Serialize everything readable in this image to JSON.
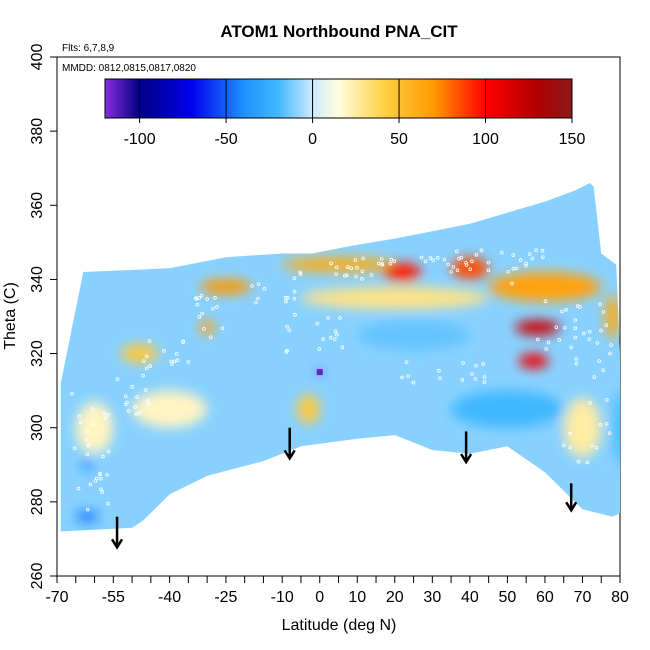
{
  "chart_data": {
    "type": "heatmap",
    "title": "ATOM1 Northbound PNA_CIT",
    "note_flights": "Flts: 6,7,8,9",
    "note_dates": "MMDD: 0812,0815,0817,0820",
    "xlabel": "Latitude (deg N)",
    "ylabel": "Theta (C)",
    "xlim": [
      -70,
      80
    ],
    "ylim": [
      260,
      400
    ],
    "x_ticks": [
      -70,
      -55,
      -40,
      -25,
      -10,
      0,
      10,
      20,
      30,
      40,
      50,
      60,
      70,
      80
    ],
    "x_tick_labels": [
      "-70",
      "-55",
      "-40",
      "-25",
      "-10",
      "0",
      "10",
      "20",
      "30",
      "40",
      "50",
      "60",
      "70",
      "80"
    ],
    "x_minor_ticks": [
      -65,
      -60,
      -50,
      -45,
      -35,
      -30,
      -20,
      -15,
      -5,
      5,
      15,
      25,
      35,
      45,
      55,
      65,
      75
    ],
    "y_ticks": [
      260,
      280,
      300,
      320,
      340,
      360,
      380,
      400
    ],
    "y_tick_labels": [
      "260",
      "280",
      "300",
      "320",
      "340",
      "360",
      "380",
      "400"
    ],
    "colorbar": {
      "range": [
        -120,
        150
      ],
      "ticks": [
        -100,
        -50,
        0,
        50,
        100,
        150
      ],
      "tick_labels": [
        "-100",
        "-50",
        "0",
        "50",
        "100",
        "150"
      ],
      "stops": [
        {
          "v": -120,
          "color": "#8a2be2"
        },
        {
          "v": -100,
          "color": "#000080"
        },
        {
          "v": -70,
          "color": "#0000ee"
        },
        {
          "v": -40,
          "color": "#1e90ff"
        },
        {
          "v": -20,
          "color": "#40b8ff"
        },
        {
          "v": 0,
          "color": "#cfe9ff"
        },
        {
          "v": 15,
          "color": "#fffde0"
        },
        {
          "v": 40,
          "color": "#ffd24a"
        },
        {
          "v": 70,
          "color": "#ff9a00"
        },
        {
          "v": 100,
          "color": "#ff0000"
        },
        {
          "v": 130,
          "color": "#b00000"
        },
        {
          "v": 150,
          "color": "#8b1a1a"
        }
      ]
    },
    "field": {
      "boundary_top": [
        [
          -69,
          312
        ],
        [
          -66,
          327
        ],
        [
          -63,
          342
        ],
        [
          -40,
          343
        ],
        [
          -25,
          346
        ],
        [
          -10,
          347
        ],
        [
          -2,
          347
        ],
        [
          8,
          349
        ],
        [
          20,
          351
        ],
        [
          30,
          353
        ],
        [
          40,
          355
        ],
        [
          50,
          358
        ],
        [
          60,
          361
        ],
        [
          68,
          364
        ],
        [
          72,
          366
        ],
        [
          73,
          365
        ],
        [
          75,
          347
        ],
        [
          79,
          344
        ],
        [
          80,
          320
        ],
        [
          80,
          283
        ]
      ],
      "boundary_bottom": [
        [
          -69,
          272
        ],
        [
          -50,
          273
        ],
        [
          -47,
          275
        ],
        [
          -40,
          282
        ],
        [
          -30,
          287
        ],
        [
          -15,
          291
        ],
        [
          -5,
          295
        ],
        [
          10,
          297
        ],
        [
          20,
          298
        ],
        [
          30,
          294
        ],
        [
          40,
          293
        ],
        [
          50,
          295
        ],
        [
          60,
          288
        ],
        [
          70,
          278
        ],
        [
          78,
          276
        ],
        [
          80,
          277
        ]
      ],
      "background_value": -10,
      "blobs": [
        {
          "lat": 5,
          "theta": 344,
          "value": 60,
          "width": 30,
          "height": 4
        },
        {
          "lat": 22,
          "theta": 342,
          "value": 95,
          "width": 10,
          "height": 5
        },
        {
          "lat": 40,
          "theta": 343,
          "value": 85,
          "width": 10,
          "height": 6
        },
        {
          "lat": 60,
          "theta": 338,
          "value": 65,
          "width": 30,
          "height": 8
        },
        {
          "lat": 58,
          "theta": 327,
          "value": 120,
          "width": 12,
          "height": 4
        },
        {
          "lat": 57,
          "theta": 318,
          "value": 105,
          "width": 8,
          "height": 4
        },
        {
          "lat": -25,
          "theta": 338,
          "value": 70,
          "width": 14,
          "height": 4
        },
        {
          "lat": -30,
          "theta": 327,
          "value": 65,
          "width": 4,
          "height": 4
        },
        {
          "lat": -48,
          "theta": 320,
          "value": 45,
          "width": 10,
          "height": 5
        },
        {
          "lat": -3,
          "theta": 305,
          "value": 45,
          "width": 6,
          "height": 8
        },
        {
          "lat": 78,
          "theta": 330,
          "value": 60,
          "width": 4,
          "height": 12
        },
        {
          "lat": 20,
          "theta": 335,
          "value": 30,
          "width": 50,
          "height": 6
        },
        {
          "lat": -40,
          "theta": 305,
          "value": 20,
          "width": 20,
          "height": 10
        },
        {
          "lat": -60,
          "theta": 300,
          "value": 20,
          "width": 10,
          "height": 14
        },
        {
          "lat": 70,
          "theta": 300,
          "value": 25,
          "width": 10,
          "height": 16
        },
        {
          "lat": 25,
          "theta": 325,
          "value": -15,
          "width": 30,
          "height": 8
        },
        {
          "lat": 50,
          "theta": 305,
          "value": -20,
          "width": 30,
          "height": 10
        },
        {
          "lat": -62,
          "theta": 276,
          "value": -45,
          "width": 6,
          "height": 3
        },
        {
          "lat": -62,
          "theta": 290,
          "value": -40,
          "width": 3,
          "height": 3
        },
        {
          "lat": 80,
          "theta": 300,
          "value": -20,
          "width": 3,
          "height": 20
        },
        {
          "lat": 0,
          "theta": 315,
          "value": -115,
          "width": 1.5,
          "height": 1.5
        }
      ]
    },
    "flight_track_markers": "white-open-circles",
    "arrows": [
      {
        "lat": -54,
        "theta_top": 276,
        "theta_bottom": 268
      },
      {
        "lat": -8,
        "theta_top": 300,
        "theta_bottom": 292
      },
      {
        "lat": 39,
        "theta_top": 299,
        "theta_bottom": 291
      },
      {
        "lat": 67,
        "theta_top": 285,
        "theta_bottom": 278
      }
    ]
  }
}
